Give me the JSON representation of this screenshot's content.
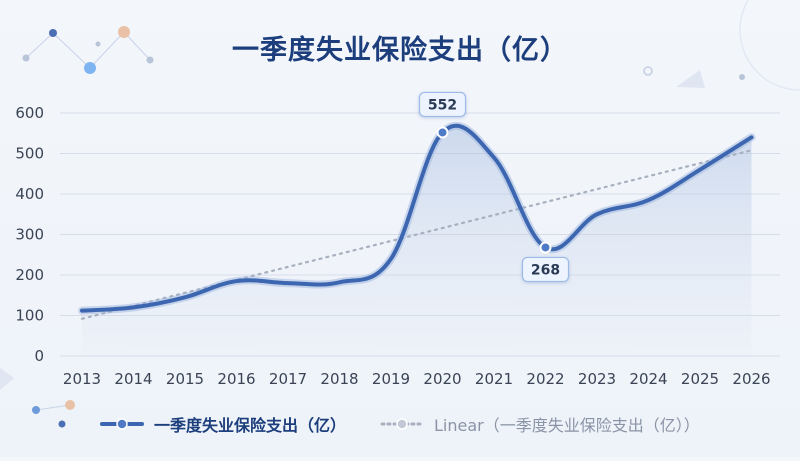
{
  "chart_data": {
    "type": "line",
    "title": "一季度失业保险支出（亿）",
    "categories": [
      "2013",
      "2014",
      "2015",
      "2016",
      "2017",
      "2018",
      "2019",
      "2020",
      "2021",
      "2022",
      "2023",
      "2024",
      "2025",
      "2026"
    ],
    "series": [
      {
        "name": "一季度失业保险支出（亿）",
        "values": [
          112,
          120,
          145,
          185,
          180,
          182,
          240,
          552,
          490,
          268,
          350,
          385,
          460,
          540
        ],
        "color": "#3d66b0"
      },
      {
        "name": "Linear（一季度失业保险支出（亿））",
        "kind": "linear-trend",
        "values": [
          92,
          124,
          156,
          188,
          220,
          252,
          284,
          316,
          348,
          380,
          412,
          444,
          476,
          508
        ],
        "color": "#a8b0bf"
      }
    ],
    "y_ticks": [
      0,
      100,
      200,
      300,
      400,
      500,
      600
    ],
    "ylim": [
      0,
      600
    ],
    "annotations": [
      {
        "category": "2020",
        "label": "552"
      },
      {
        "category": "2022",
        "label": "268"
      }
    ],
    "grid": true,
    "legend": "bottom"
  }
}
